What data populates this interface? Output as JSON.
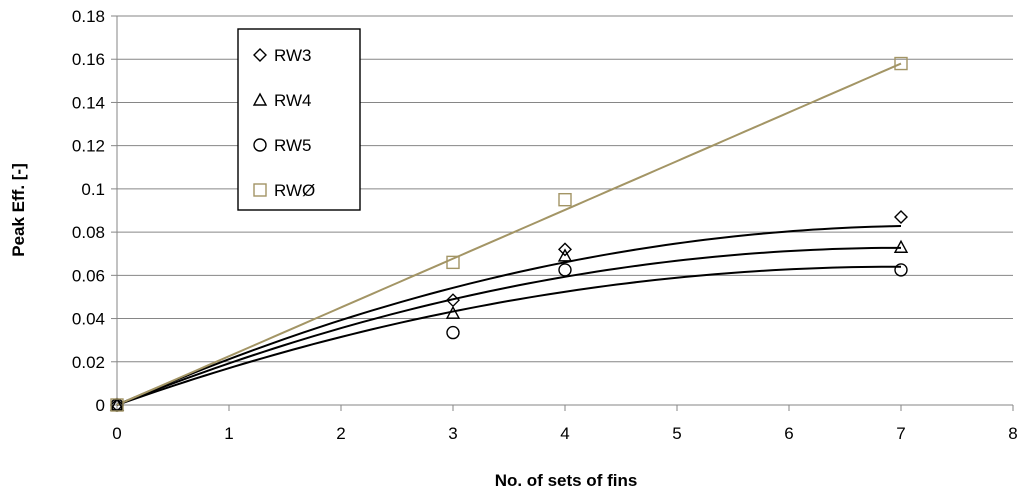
{
  "chart_data": {
    "type": "scatter",
    "title": "",
    "xlabel": "No. of sets of fins",
    "ylabel": "Peak Eff. [-]",
    "xlim": [
      0,
      8
    ],
    "ylim": [
      0,
      0.18
    ],
    "x_ticks": [
      "0",
      "1",
      "2",
      "3",
      "4",
      "5",
      "6",
      "7",
      "8"
    ],
    "y_ticks": [
      "0",
      "0.02",
      "0.04",
      "0.06",
      "0.08",
      "0.1",
      "0.12",
      "0.14",
      "0.16",
      "0.18"
    ],
    "grid": "horizontal",
    "legend_position": "top-left",
    "series": [
      {
        "name": "RW3",
        "marker": "diamond",
        "color": "#000000",
        "x": [
          0,
          3,
          4,
          7
        ],
        "y": [
          0,
          0.0485,
          0.072,
          0.087
        ],
        "trendline": "polynomial",
        "trend_coeffs": [
          0,
          0.02275,
          -0.00156
        ]
      },
      {
        "name": "RW4",
        "marker": "triangle",
        "color": "#000000",
        "x": [
          0,
          3,
          4,
          7
        ],
        "y": [
          0,
          0.0425,
          0.069,
          0.073
        ],
        "trendline": "polynomial",
        "trend_coeffs": [
          0,
          0.02075,
          -0.00148
        ]
      },
      {
        "name": "RW5",
        "marker": "circle",
        "color": "#000000",
        "x": [
          0,
          3,
          4,
          7
        ],
        "y": [
          0,
          0.0335,
          0.0625,
          0.0625
        ],
        "trendline": "polynomial",
        "trend_coeffs": [
          0,
          0.01838,
          -0.00132
        ]
      },
      {
        "name": "RWØ",
        "marker": "square",
        "color": "#a39565",
        "x": [
          0,
          3,
          4,
          7
        ],
        "y": [
          0,
          0.066,
          0.095,
          0.158
        ],
        "trendline": "linear",
        "trend_coeffs": [
          0,
          0.02257,
          0
        ]
      }
    ]
  }
}
